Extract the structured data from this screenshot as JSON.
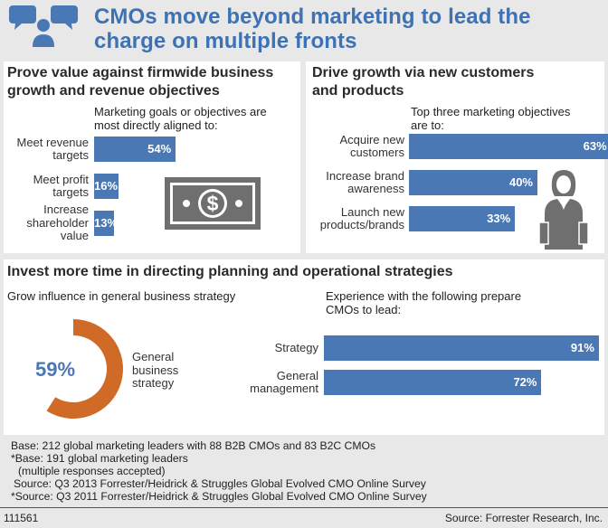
{
  "title_line1": "CMOs move beyond marketing to lead the",
  "title_line2": "charge on multiple fronts",
  "colors": {
    "bar": "#4a78b5",
    "donut": "#cf6a27",
    "title": "#3d72b4",
    "icon_gray": "#6f6f6f"
  },
  "icons": {
    "header": "chat-people-icon",
    "money": "dollar-bill-icon",
    "person": "businesswoman-icon"
  },
  "panel1": {
    "title_line1": "Prove value against firmwide business",
    "title_line2": "growth and revenue objectives",
    "subtitle_line1": "Marketing goals or objectives are",
    "subtitle_line2": "most directly aligned to:"
  },
  "panel2": {
    "title_line1": "Drive growth via new customers",
    "title_line2": "and products",
    "subtitle_line1": "Top three marketing objectives",
    "subtitle_line2": "are to:"
  },
  "panel3": {
    "title": "Invest more time in directing planning and operational strategies",
    "left_subtitle": "Grow influence in general business strategy",
    "right_subtitle_line1": "Experience with the following prepare",
    "right_subtitle_line2": "CMOs to lead:"
  },
  "chart_data": [
    {
      "type": "bar",
      "categories": [
        [
          "Meet revenue",
          "targets"
        ],
        [
          "Meet profit",
          "targets"
        ],
        [
          "Increase",
          "shareholder",
          "value"
        ]
      ],
      "values": [
        54,
        16,
        13
      ],
      "value_labels": [
        "54%",
        "16%",
        "13%"
      ]
    },
    {
      "type": "bar",
      "categories": [
        [
          "Acquire new",
          "customers"
        ],
        [
          "Increase brand",
          "awareness"
        ],
        [
          "Launch new",
          "products/brands"
        ]
      ],
      "values": [
        63,
        40,
        33
      ],
      "value_labels": [
        "63%",
        "40%",
        "33%"
      ]
    },
    {
      "type": "pie",
      "value": 59,
      "value_label": "59%",
      "slice_label": [
        "General",
        "business",
        "strategy"
      ]
    },
    {
      "type": "bar",
      "categories": [
        [
          "Strategy"
        ],
        [
          "General",
          "management"
        ]
      ],
      "values": [
        91,
        72
      ],
      "value_labels": [
        "91%",
        "72%"
      ]
    }
  ],
  "footnotes": [
    "Base: 212 global marketing leaders with 88 B2B CMOs and 83 B2C CMOs",
    "*Base: 191 global marketing leaders",
    "(multiple responses accepted)",
    "Source: Q3 2013 Forrester/Heidrick & Struggles Global Evolved CMO Online Survey",
    "*Source: Q3 2011 Forrester/Heidrick & Struggles Global Evolved CMO Online Survey"
  ],
  "figure_id": "111561",
  "source": "Source: Forrester Research, Inc."
}
